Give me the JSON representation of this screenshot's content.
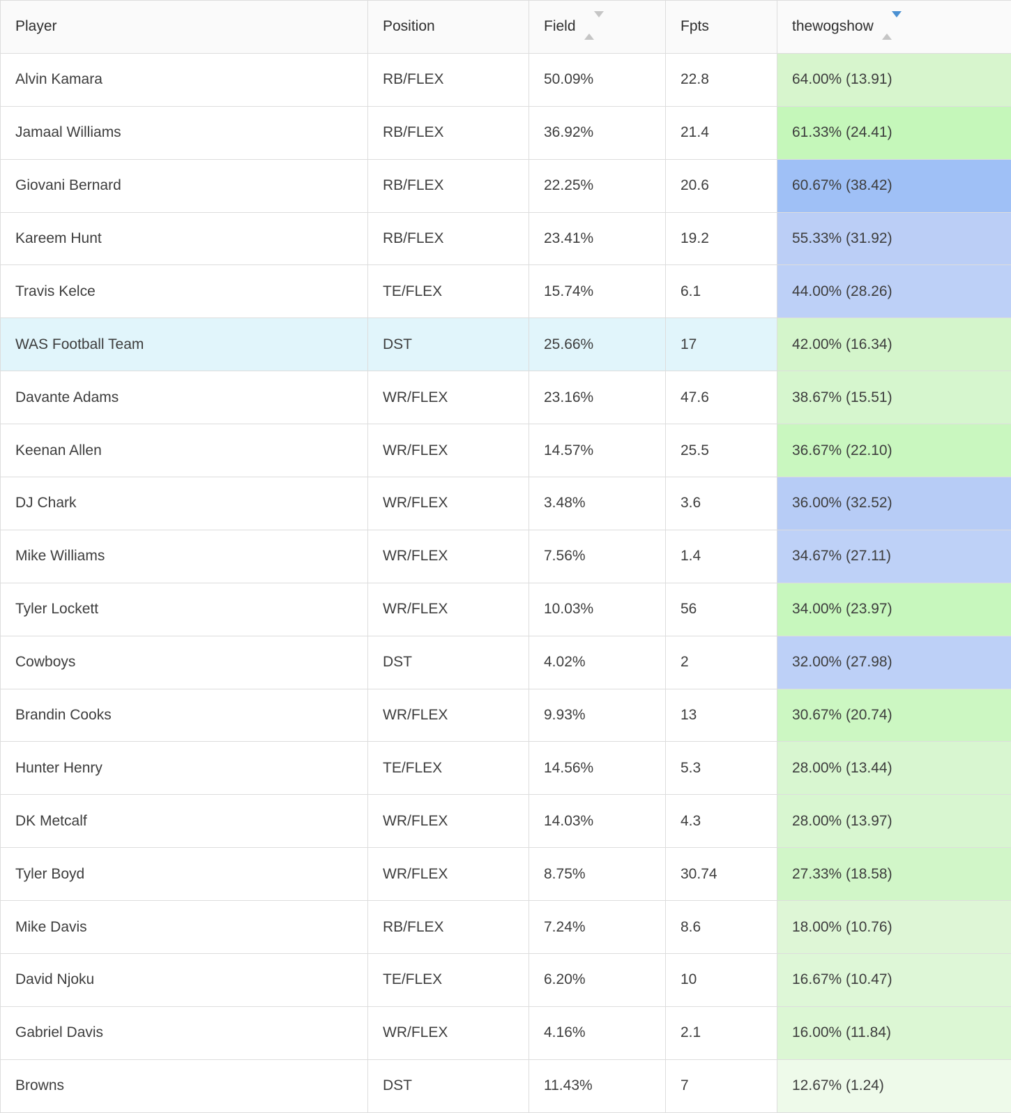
{
  "table": {
    "columns": [
      {
        "label": "Player",
        "sortable": false,
        "sort": "none"
      },
      {
        "label": "Position",
        "sortable": false,
        "sort": "none"
      },
      {
        "label": "Field",
        "sortable": true,
        "sort": "none"
      },
      {
        "label": "Fpts",
        "sortable": false,
        "sort": "none"
      },
      {
        "label": "thewogshow",
        "sortable": true,
        "sort": "desc"
      }
    ],
    "colors": {
      "sort_arrow_inactive": "#c5c5c5",
      "sort_arrow_active": "#4a90d2",
      "border": "#dddddd",
      "header_bg": "#fafafa",
      "highlight_row_bg": "#e1f5fb",
      "text": "#3d3d3d"
    },
    "rows": [
      {
        "player": "Alvin Kamara",
        "position": "RB/FLEX",
        "field": "50.09%",
        "fpts": "22.8",
        "thewogshow": "64.00% (13.91)",
        "thewogshow_bg": "#d7f5cd",
        "highlighted": false
      },
      {
        "player": "Jamaal Williams",
        "position": "RB/FLEX",
        "field": "36.92%",
        "fpts": "21.4",
        "thewogshow": "61.33% (24.41)",
        "thewogshow_bg": "#c5f7ba",
        "highlighted": false
      },
      {
        "player": "Giovani Bernard",
        "position": "RB/FLEX",
        "field": "22.25%",
        "fpts": "20.6",
        "thewogshow": "60.67% (38.42)",
        "thewogshow_bg": "#9fc0f6",
        "highlighted": false
      },
      {
        "player": "Kareem Hunt",
        "position": "RB/FLEX",
        "field": "23.41%",
        "fpts": "19.2",
        "thewogshow": "55.33% (31.92)",
        "thewogshow_bg": "#bbcef6",
        "highlighted": false
      },
      {
        "player": "Travis Kelce",
        "position": "TE/FLEX",
        "field": "15.74%",
        "fpts": "6.1",
        "thewogshow": "44.00% (28.26)",
        "thewogshow_bg": "#bdd0f7",
        "highlighted": false
      },
      {
        "player": "WAS Football Team",
        "position": "DST",
        "field": "25.66%",
        "fpts": "17",
        "thewogshow": "42.00% (16.34)",
        "thewogshow_bg": "#d4f5cb",
        "highlighted": true
      },
      {
        "player": "Davante Adams",
        "position": "WR/FLEX",
        "field": "23.16%",
        "fpts": "47.6",
        "thewogshow": "38.67% (15.51)",
        "thewogshow_bg": "#d6f6ce",
        "highlighted": false
      },
      {
        "player": "Keenan Allen",
        "position": "WR/FLEX",
        "field": "14.57%",
        "fpts": "25.5",
        "thewogshow": "36.67% (22.10)",
        "thewogshow_bg": "#c9f7bf",
        "highlighted": false
      },
      {
        "player": "DJ Chark",
        "position": "WR/FLEX",
        "field": "3.48%",
        "fpts": "3.6",
        "thewogshow": "36.00% (32.52)",
        "thewogshow_bg": "#b7ccf6",
        "highlighted": false
      },
      {
        "player": "Mike Williams",
        "position": "WR/FLEX",
        "field": "7.56%",
        "fpts": "1.4",
        "thewogshow": "34.67% (27.11)",
        "thewogshow_bg": "#bed1f7",
        "highlighted": false
      },
      {
        "player": "Tyler Lockett",
        "position": "WR/FLEX",
        "field": "10.03%",
        "fpts": "56",
        "thewogshow": "34.00% (23.97)",
        "thewogshow_bg": "#c7f7bd",
        "highlighted": false
      },
      {
        "player": "Cowboys",
        "position": "DST",
        "field": "4.02%",
        "fpts": "2",
        "thewogshow": "32.00% (27.98)",
        "thewogshow_bg": "#bdd0f7",
        "highlighted": false
      },
      {
        "player": "Brandin Cooks",
        "position": "WR/FLEX",
        "field": "9.93%",
        "fpts": "13",
        "thewogshow": "30.67% (20.74)",
        "thewogshow_bg": "#ccf7c2",
        "highlighted": false
      },
      {
        "player": "Hunter Henry",
        "position": "TE/FLEX",
        "field": "14.56%",
        "fpts": "5.3",
        "thewogshow": "28.00% (13.44)",
        "thewogshow_bg": "#d8f6d0",
        "highlighted": false
      },
      {
        "player": "DK Metcalf",
        "position": "WR/FLEX",
        "field": "14.03%",
        "fpts": "4.3",
        "thewogshow": "28.00% (13.97)",
        "thewogshow_bg": "#d8f6d0",
        "highlighted": false
      },
      {
        "player": "Tyler Boyd",
        "position": "WR/FLEX",
        "field": "8.75%",
        "fpts": "30.74",
        "thewogshow": "27.33% (18.58)",
        "thewogshow_bg": "#d1f6c8",
        "highlighted": false
      },
      {
        "player": "Mike Davis",
        "position": "RB/FLEX",
        "field": "7.24%",
        "fpts": "8.6",
        "thewogshow": "18.00% (10.76)",
        "thewogshow_bg": "#def6d6",
        "highlighted": false
      },
      {
        "player": "David Njoku",
        "position": "TE/FLEX",
        "field": "6.20%",
        "fpts": "10",
        "thewogshow": "16.67% (10.47)",
        "thewogshow_bg": "#def7d7",
        "highlighted": false
      },
      {
        "player": "Gabriel Davis",
        "position": "WR/FLEX",
        "field": "4.16%",
        "fpts": "2.1",
        "thewogshow": "16.00% (11.84)",
        "thewogshow_bg": "#dcf7d4",
        "highlighted": false
      },
      {
        "player": "Browns",
        "position": "DST",
        "field": "11.43%",
        "fpts": "7",
        "thewogshow": "12.67% (1.24)",
        "thewogshow_bg": "#eefaea",
        "highlighted": false
      }
    ]
  }
}
